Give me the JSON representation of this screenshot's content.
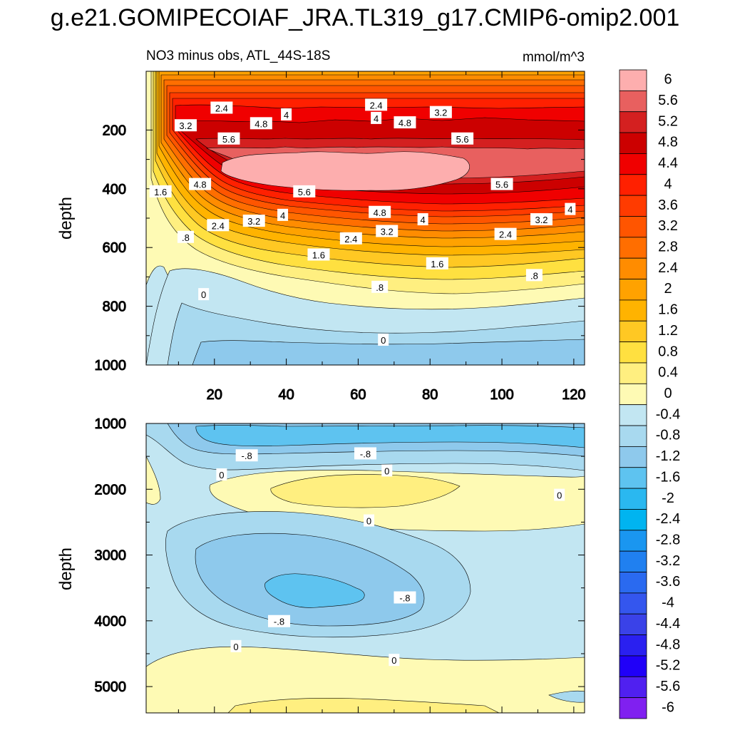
{
  "title": "g.e21.GOMIPECOIAF_JRA.TL319_g17.CMIP6-omip2.001",
  "chart_data": [
    {
      "type": "heatmap",
      "panel": "upper",
      "subtitle_left": "NO3 minus obs, ATL_44S-18S",
      "subtitle_right": "mmol/m^3",
      "ylabel": "depth",
      "xlim": [
        1,
        123
      ],
      "ylim": [
        0,
        1000
      ],
      "y_reversed": true,
      "xticks": [
        20,
        40,
        60,
        80,
        100,
        120
      ],
      "yticks": [
        200,
        400,
        600,
        800,
        1000
      ],
      "contour_labels": [
        {
          "text": "2.4",
          "x": 22,
          "y": 125
        },
        {
          "text": "2.4",
          "x": 65,
          "y": 115
        },
        {
          "text": "3.2",
          "x": 12,
          "y": 185
        },
        {
          "text": "4",
          "x": 40,
          "y": 148
        },
        {
          "text": "3.2",
          "x": 83,
          "y": 140
        },
        {
          "text": "4.8",
          "x": 33,
          "y": 178
        },
        {
          "text": "4",
          "x": 65,
          "y": 160
        },
        {
          "text": "4.8",
          "x": 73,
          "y": 175
        },
        {
          "text": "5.6",
          "x": 24,
          "y": 230
        },
        {
          "text": "5.6",
          "x": 89,
          "y": 230
        },
        {
          "text": "4.8",
          "x": 16,
          "y": 385
        },
        {
          "text": "5.6",
          "x": 45,
          "y": 410
        },
        {
          "text": "5.6",
          "x": 100,
          "y": 385
        },
        {
          "text": "1.6",
          "x": 5,
          "y": 410
        },
        {
          "text": "4.8",
          "x": 66,
          "y": 480
        },
        {
          "text": "4",
          "x": 39,
          "y": 490
        },
        {
          "text": "4",
          "x": 78,
          "y": 505
        },
        {
          "text": "4",
          "x": 119,
          "y": 470
        },
        {
          "text": "2.4",
          "x": 21,
          "y": 525
        },
        {
          "text": "3.2",
          "x": 31,
          "y": 510
        },
        {
          "text": "3.2",
          "x": 68,
          "y": 545
        },
        {
          "text": "3.2",
          "x": 111,
          "y": 505
        },
        {
          "text": "2.4",
          "x": 58,
          "y": 570
        },
        {
          "text": "2.4",
          "x": 101,
          "y": 555
        },
        {
          "text": ".8",
          "x": 12,
          "y": 565
        },
        {
          "text": "1.6",
          "x": 49,
          "y": 625
        },
        {
          "text": "1.6",
          "x": 82,
          "y": 655
        },
        {
          "text": ".8",
          "x": 66,
          "y": 735
        },
        {
          "text": ".8",
          "x": 109,
          "y": 695
        },
        {
          "text": "0",
          "x": 17,
          "y": 760
        },
        {
          "text": "0",
          "x": 67,
          "y": 915
        }
      ]
    },
    {
      "type": "heatmap",
      "panel": "lower",
      "ylabel": "depth",
      "xlim": [
        1,
        123
      ],
      "ylim": [
        1000,
        5400
      ],
      "y_reversed": true,
      "yticks": [
        1000,
        2000,
        3000,
        4000,
        5000
      ],
      "contour_labels": [
        {
          "text": "-.8",
          "x": 29,
          "y": 1490
        },
        {
          "text": "-.8",
          "x": 62,
          "y": 1460
        },
        {
          "text": "0",
          "x": 22,
          "y": 1780
        },
        {
          "text": "0",
          "x": 68,
          "y": 1720
        },
        {
          "text": "0",
          "x": 116,
          "y": 2090
        },
        {
          "text": "0",
          "x": 63,
          "y": 2480
        },
        {
          "text": "-.8",
          "x": 73,
          "y": 3650
        },
        {
          "text": "-.8",
          "x": 38,
          "y": 4010
        },
        {
          "text": "0",
          "x": 26,
          "y": 4390
        },
        {
          "text": "0",
          "x": 70,
          "y": 4600
        }
      ]
    }
  ],
  "colorbar": {
    "labels": [
      "6",
      "5.6",
      "5.2",
      "4.8",
      "4.4",
      "4",
      "3.6",
      "3.2",
      "2.8",
      "2.4",
      "2",
      "1.6",
      "1.2",
      "0.8",
      "0.4",
      "0",
      "-0.4",
      "-0.8",
      "-1.2",
      "-1.6",
      "-2",
      "-2.4",
      "-2.8",
      "-3.2",
      "-3.6",
      "-4",
      "-4.4",
      "-4.8",
      "-5.2",
      "-5.6",
      "-6"
    ],
    "colors": [
      "#fdaeae",
      "#e8605f",
      "#d42020",
      "#cc0000",
      "#f00000",
      "#ff2000",
      "#ff3b00",
      "#ff5500",
      "#ff6e00",
      "#ff8c00",
      "#ffa200",
      "#ffb300",
      "#ffc823",
      "#ffe040",
      "#ffef80",
      "#fefab4",
      "#c2e6f2",
      "#a8d9ef",
      "#8ec9ec",
      "#5ec3f0",
      "#2ab8f0",
      "#00b4f0",
      "#1a96f0",
      "#2080f0",
      "#2a6af0",
      "#3456ee",
      "#3a42e8",
      "#2a20f0",
      "#2000f8",
      "#5020f0",
      "#8020f0"
    ]
  }
}
